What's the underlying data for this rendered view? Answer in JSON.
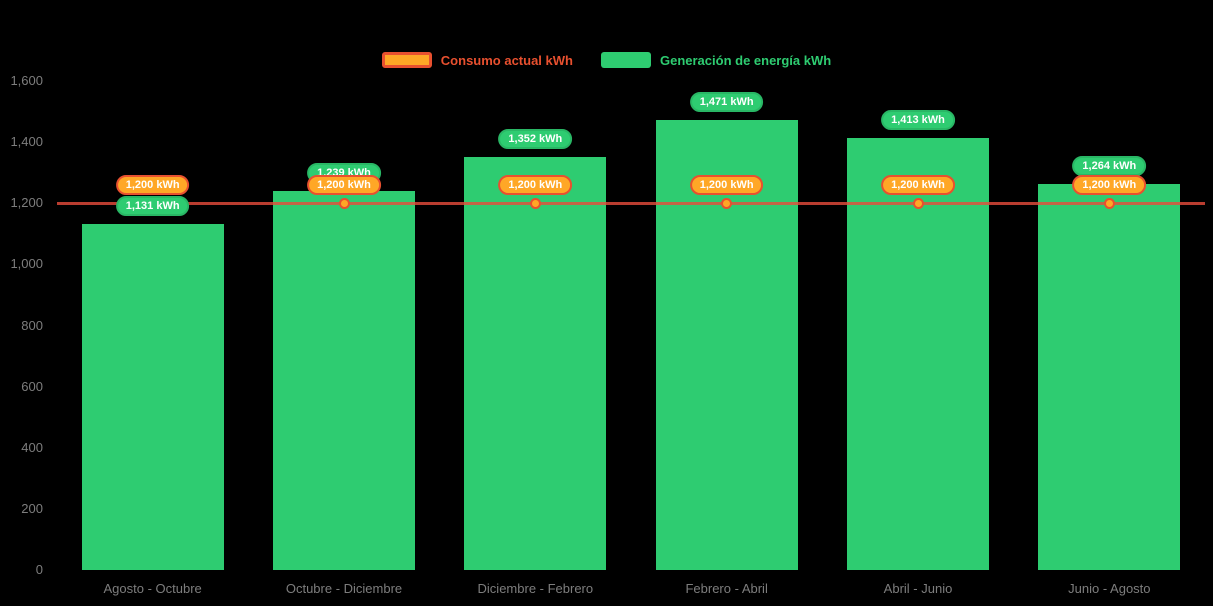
{
  "chart_data": {
    "type": "bar",
    "title": "",
    "xlabel": "",
    "ylabel": "",
    "categories": [
      "Agosto - Octubre",
      "Octubre - Diciembre",
      "Diciembre - Febrero",
      "Febrero - Abril",
      "Abril - Junio",
      "Junio - Agosto"
    ],
    "series": [
      {
        "name": "Consumo actual kWh",
        "type": "line",
        "values": [
          1200,
          1200,
          1200,
          1200,
          1200,
          1200
        ],
        "labels": [
          "1,200 kWh",
          "1,200 kWh",
          "1,200 kWh",
          "1,200 kWh",
          "1,200 kWh",
          "1,200 kWh"
        ],
        "color": "#e74c3c",
        "marker_color": "#ffa726"
      },
      {
        "name": "Generación de energía kWh",
        "type": "bar",
        "values": [
          1131,
          1239,
          1352,
          1471,
          1413,
          1264
        ],
        "labels": [
          "1,131 kWh",
          "1,239 kWh",
          "1,352 kWh",
          "1,471 kWh",
          "1,413 kWh",
          "1,264 kWh"
        ],
        "color": "#2ecc71"
      }
    ],
    "ylim": [
      0,
      1600
    ],
    "yticks": [
      0,
      200,
      400,
      600,
      800,
      1000,
      1200,
      1400,
      1600
    ],
    "ytick_labels": [
      "0",
      "200",
      "400",
      "600",
      "800",
      "1,000",
      "1,200",
      "1,400",
      "1,600"
    ],
    "legend_position": "top",
    "grid": false,
    "background_color": "#000000",
    "axis_text_color": "#7d7d7d"
  }
}
